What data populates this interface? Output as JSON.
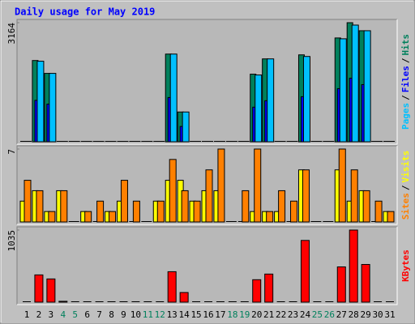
{
  "chart_data": [
    {
      "type": "bar",
      "title": "Daily usage for May 2019",
      "ylim": [
        0,
        3164
      ],
      "yticks": [
        3164
      ],
      "legend_separator": "/",
      "series": [
        {
          "name": "Hits",
          "color": "#00805c",
          "values": [
            0,
            2159,
            1817,
            0,
            0,
            0,
            0,
            0,
            0,
            0,
            0,
            0,
            2330,
            791,
            0,
            0,
            0,
            0,
            0,
            1796,
            2202,
            0,
            0,
            2309,
            0,
            0,
            2758,
            3164,
            2950,
            0,
            0
          ]
        },
        {
          "name": "Files",
          "color": "#0000ff",
          "values": [
            0,
            1100,
            1000,
            0,
            0,
            0,
            0,
            0,
            0,
            0,
            0,
            0,
            1175,
            406,
            0,
            0,
            0,
            0,
            0,
            919,
            1090,
            0,
            0,
            1197,
            0,
            0,
            1411,
            1689,
            1518,
            0,
            0
          ]
        },
        {
          "name": "Pages",
          "color": "#00c0ff",
          "values": [
            0,
            2140,
            1817,
            0,
            0,
            0,
            0,
            0,
            0,
            0,
            0,
            0,
            2330,
            791,
            0,
            0,
            0,
            0,
            0,
            1774,
            2202,
            0,
            0,
            2266,
            0,
            0,
            2736,
            3100,
            2950,
            0,
            0
          ]
        }
      ]
    },
    {
      "type": "bar",
      "ylim": [
        0,
        7
      ],
      "yticks": [
        7
      ],
      "legend_separator": "/",
      "series": [
        {
          "name": "Visits",
          "color": "#ffff00",
          "values": [
            2,
            3,
            1,
            3,
            0,
            1,
            0,
            1,
            2,
            0,
            0,
            2,
            4,
            4,
            2,
            3,
            3,
            0,
            0,
            1,
            1,
            1,
            0,
            5,
            0,
            0,
            5,
            2,
            3,
            0,
            1
          ]
        },
        {
          "name": "Sites",
          "color": "#ff8000",
          "values": [
            4,
            3,
            1,
            3,
            0,
            1,
            2,
            1,
            4,
            2,
            0,
            2,
            6,
            3,
            2,
            5,
            7,
            0,
            3,
            7,
            1,
            3,
            2,
            5,
            0,
            0,
            7,
            5,
            3,
            2,
            1
          ]
        }
      ]
    },
    {
      "type": "bar",
      "ylim": [
        0,
        1035
      ],
      "yticks": [
        1035
      ],
      "categories": [
        "1",
        "2",
        "3",
        "4",
        "5",
        "6",
        "7",
        "8",
        "9",
        "10",
        "11",
        "12",
        "13",
        "14",
        "15",
        "16",
        "17",
        "18",
        "19",
        "20",
        "21",
        "22",
        "23",
        "24",
        "25",
        "26",
        "27",
        "28",
        "29",
        "30",
        "31"
      ],
      "category_colors": [
        "#000000",
        "#000000",
        "#000000",
        "#00805c",
        "#00805c",
        "#000000",
        "#000000",
        "#000000",
        "#000000",
        "#000000",
        "#00805c",
        "#00805c",
        "#000000",
        "#000000",
        "#000000",
        "#000000",
        "#000000",
        "#00805c",
        "#00805c",
        "#000000",
        "#000000",
        "#000000",
        "#000000",
        "#000000",
        "#00805c",
        "#00805c",
        "#000000",
        "#000000",
        "#000000",
        "#000000",
        "#000000"
      ],
      "series": [
        {
          "name": "KBytes",
          "color": "#ff0000",
          "values": [
            0,
            391,
            333,
            12,
            0,
            0,
            0,
            0,
            0,
            0,
            0,
            0,
            437,
            138,
            0,
            0,
            0,
            0,
            0,
            322,
            403,
            0,
            0,
            886,
            0,
            0,
            506,
            1035,
            541,
            0,
            0
          ]
        }
      ]
    }
  ]
}
